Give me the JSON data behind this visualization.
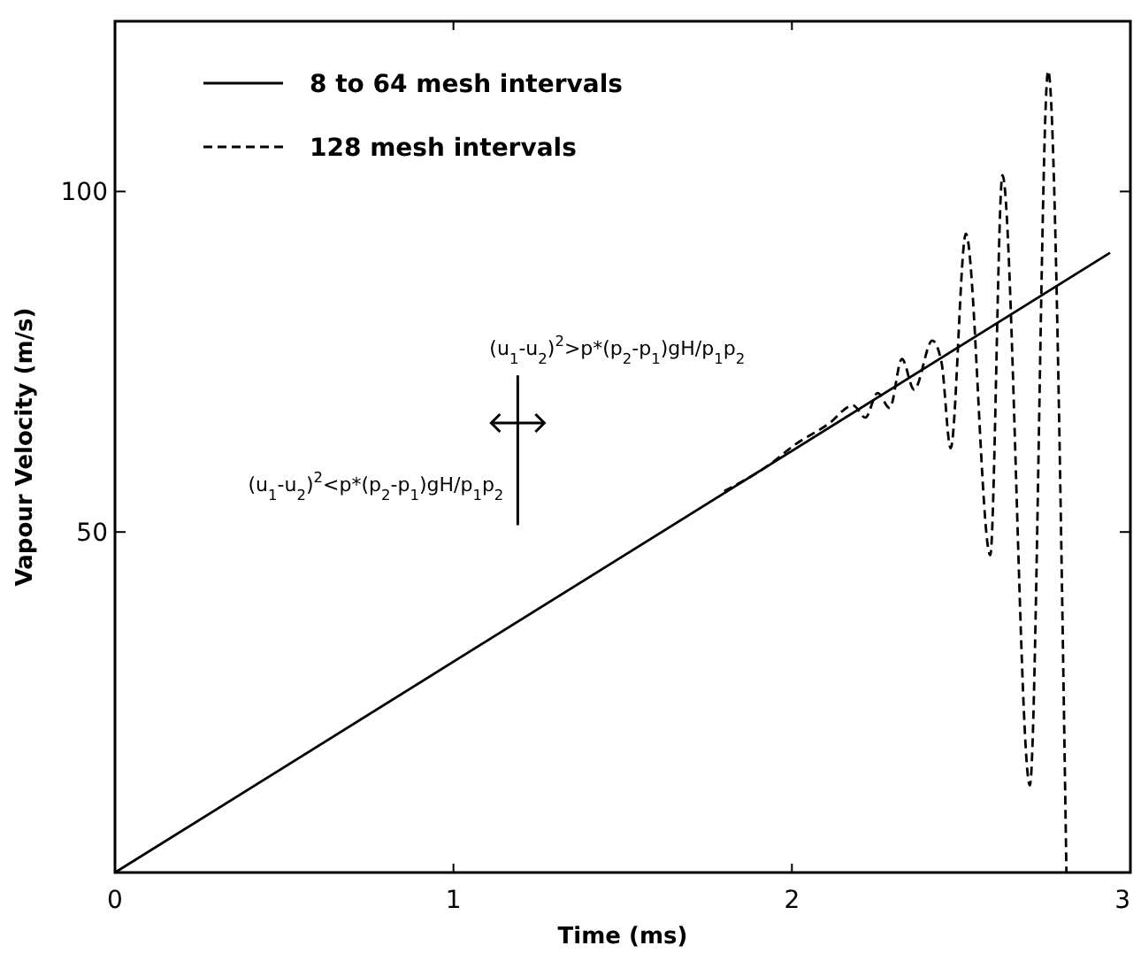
{
  "chart_data": {
    "type": "line",
    "xlabel": "Time (ms)",
    "ylabel": "Vapour Velocity (m/s)",
    "xlim": [
      0,
      3
    ],
    "ylim": [
      0,
      125
    ],
    "xticks": [
      0,
      1,
      2,
      3
    ],
    "yticks": [
      50,
      100
    ],
    "grid": false,
    "legend": "top left",
    "series": [
      {
        "name": "8 to 64 mesh intervals",
        "color": "#000000",
        "line_style": "solid",
        "x": [
          0,
          2.94
        ],
        "values": [
          0,
          91
        ]
      },
      {
        "name": "128 mesh intervals",
        "color": "#000000",
        "line_style": "dashed",
        "x": [
          1.8,
          1.95,
          2.0,
          2.109,
          2.181,
          2.217,
          2.253,
          2.289,
          2.325,
          2.361,
          2.415,
          2.442,
          2.469,
          2.514,
          2.586,
          2.622,
          2.703,
          2.757,
          2.811
        ],
        "values": [
          56,
          60.5,
          62.5,
          65.9,
          68.6,
          66.8,
          70.4,
          68.2,
          75.4,
          70.9,
          78.1,
          74.9,
          62.3,
          93.8,
          46.6,
          102.4,
          12.8,
          117.7,
          0
        ]
      }
    ],
    "annotations": [
      "(u$_{1}$-u$_{2}$)$^{2}$<p*(p$_{2}$-p$_{1}$)gH/p$_{1}$p$_{2}$",
      "(u$_{1}$-u$_{2}$)$^{2}$>p*(p$_{2}$-p$_{1}$)gH/p$_{1}$p$_{2}$"
    ]
  }
}
